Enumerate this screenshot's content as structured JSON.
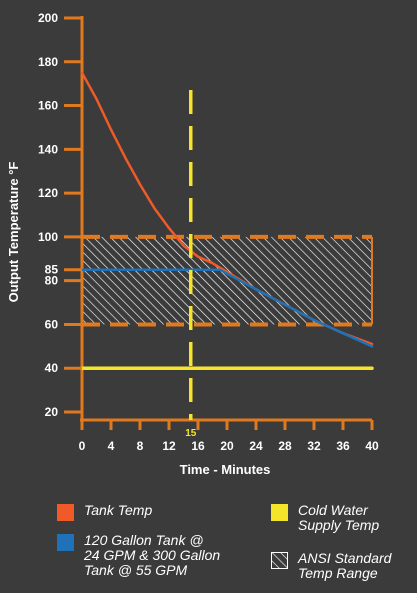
{
  "colors": {
    "background": "#3b3b3b",
    "axis": "#e07a1f",
    "tank_temp": "#f05a28",
    "gallon_tank": "#1f72b8",
    "cold_water": "#f4e52a",
    "ansi_band": "#ffffff",
    "ansi_border": "#e07a1f"
  },
  "chart_data": {
    "type": "line",
    "xlabel": "Time - Minutes",
    "ylabel": "Output Temperature °F",
    "xlim": [
      0,
      40
    ],
    "ylim": [
      20,
      200
    ],
    "x_ticks": [
      0,
      4,
      8,
      12,
      16,
      20,
      24,
      28,
      32,
      36,
      40
    ],
    "y_ticks": [
      20,
      40,
      60,
      80,
      85,
      100,
      120,
      140,
      160,
      180,
      200
    ],
    "series": [
      {
        "name": "Tank Temp",
        "color": "#f05a28",
        "x": [
          0,
          2,
          4,
          6,
          8,
          10,
          12,
          14,
          16,
          18,
          20,
          24,
          28,
          32,
          36,
          40
        ],
        "y": [
          175,
          163,
          149,
          136,
          124,
          113,
          104,
          96,
          91,
          88,
          84,
          76,
          69,
          62,
          56,
          51
        ]
      },
      {
        "name": "120 Gallon Tank @ 24 GPM & 300 Gallon Tank @ 55 GPM",
        "color": "#1f72b8",
        "x": [
          0,
          19,
          24,
          28,
          32,
          36,
          40
        ],
        "y": [
          85,
          85,
          76,
          69,
          62,
          56,
          50
        ]
      },
      {
        "name": "Cold Water Supply Temp",
        "color": "#f4e52a",
        "x": [
          0,
          40
        ],
        "y": [
          40,
          40
        ]
      }
    ],
    "bands": [
      {
        "name": "ANSI Standard Temp Range",
        "y": [
          60,
          100
        ],
        "style": "hatched"
      }
    ],
    "markers": [
      {
        "x": 15,
        "label": "15",
        "color": "#f4e52a",
        "style": "dashed-vertical"
      }
    ],
    "legend": [
      {
        "name": "Tank Temp",
        "swatch": "solid",
        "color": "#f05a28"
      },
      {
        "name": "120 Gallon Tank @\n24 GPM & 300 Gallon\nTank @ 55 GPM",
        "swatch": "solid",
        "color": "#1f72b8"
      },
      {
        "name": "Cold Water\nSupply Temp",
        "swatch": "solid",
        "color": "#f4e52a"
      },
      {
        "name": "ANSI Standard\nTemp Range",
        "swatch": "hatched",
        "color": "#ffffff"
      }
    ],
    "legend_placement": "bottom",
    "grid": false
  }
}
